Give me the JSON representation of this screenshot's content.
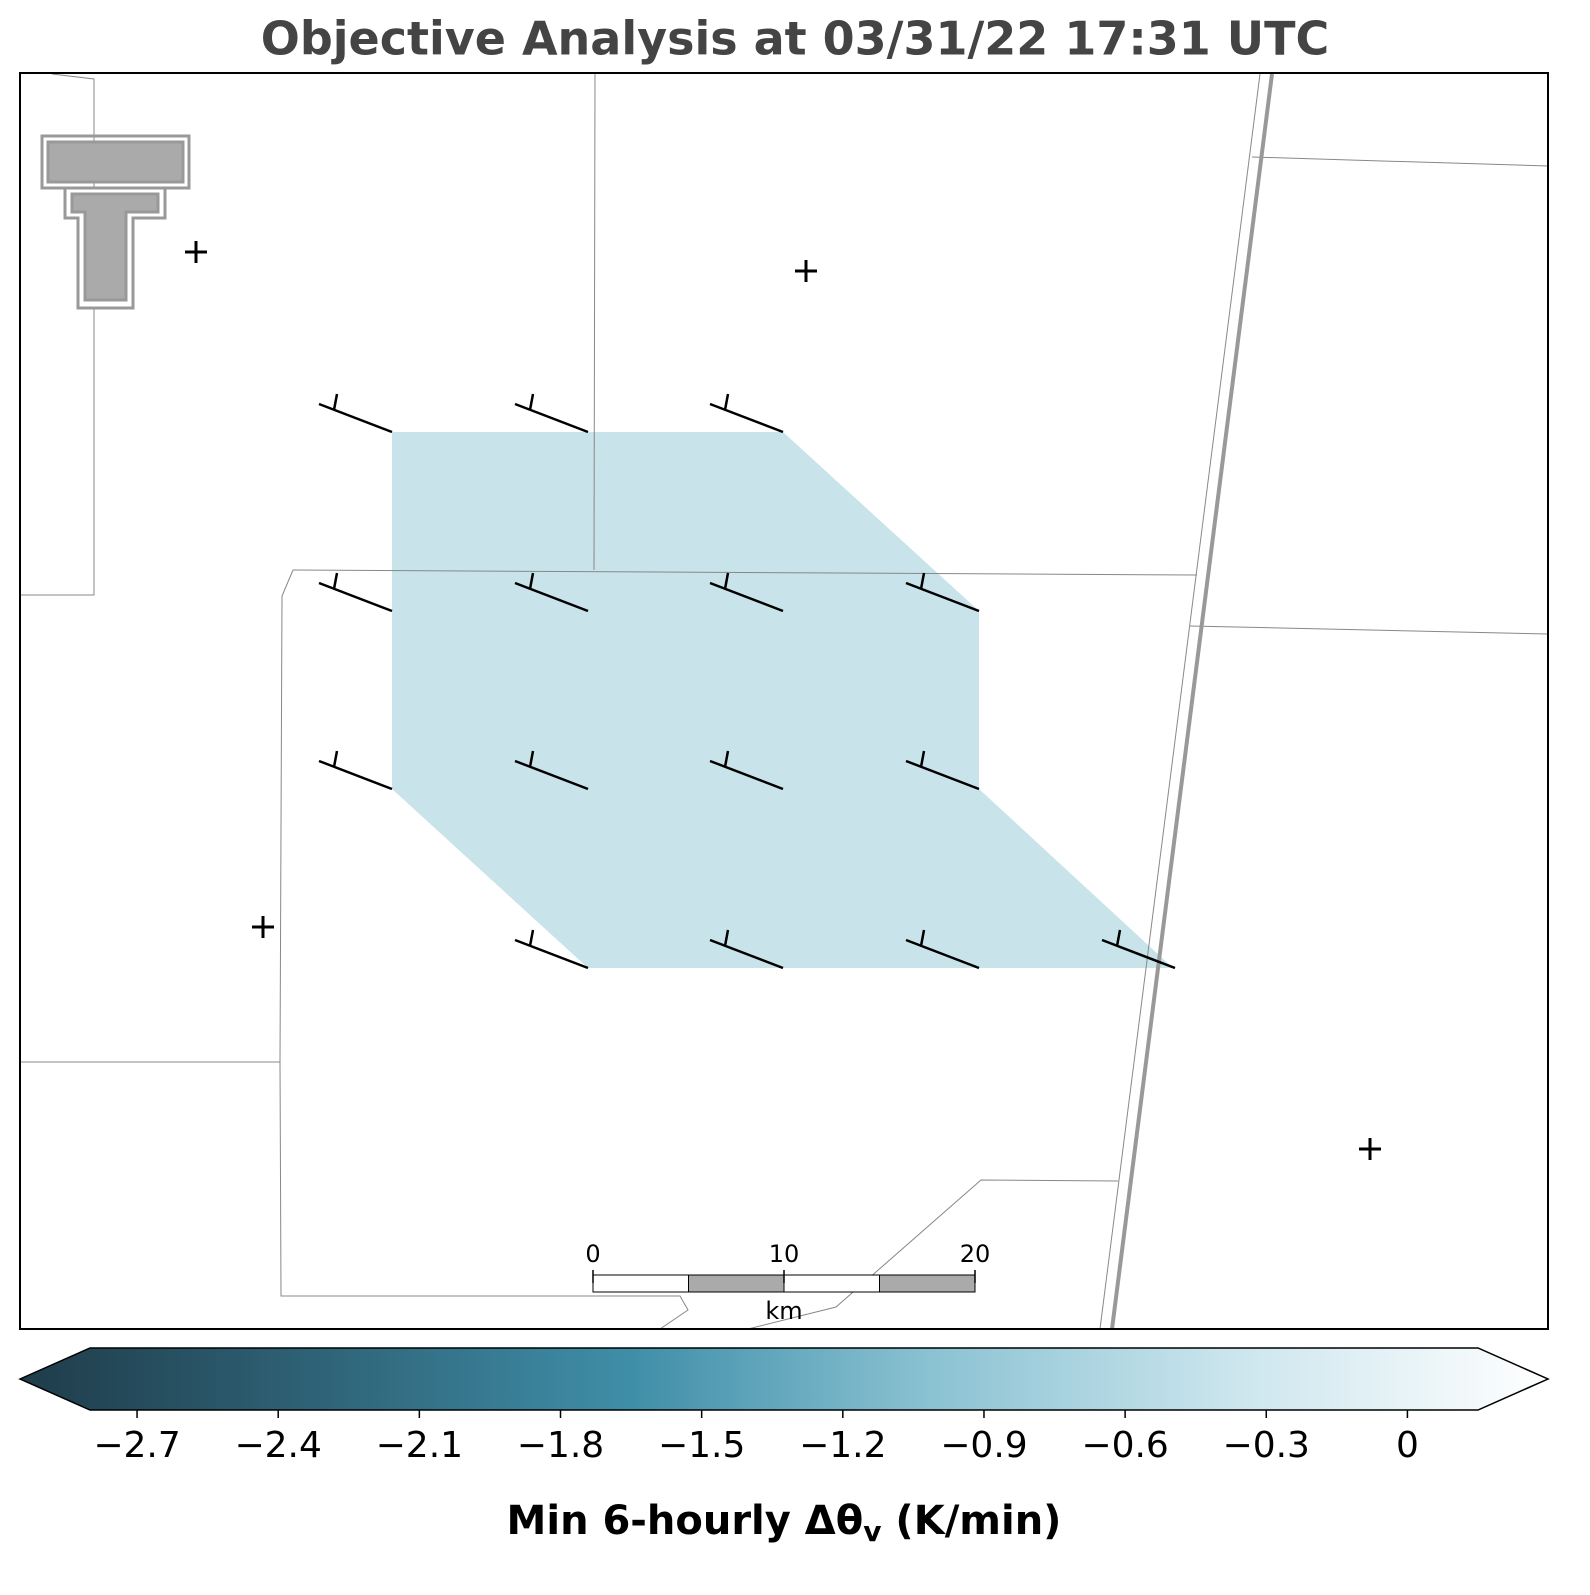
{
  "chart_data": {
    "type": "objective-analysis",
    "title": "Objective Analysis at 03/31/22 17:31 UTC",
    "colorbar": {
      "label": {
        "main": "Min 6-hourly Δθ",
        "sub": "v",
        "tail": " (K/min)"
      },
      "clim": [
        -2.8,
        0.15
      ],
      "colors": [
        "#1f3c4a",
        "#2f6478",
        "#3f8ea8",
        "#8cc3d3",
        "#cde6ee",
        "#ffffff"
      ],
      "ticks": [
        {
          "value": -2.7,
          "label": "−2.7"
        },
        {
          "value": -2.4,
          "label": "−2.4"
        },
        {
          "value": -2.1,
          "label": "−2.1"
        },
        {
          "value": -1.8,
          "label": "−1.8"
        },
        {
          "value": -1.5,
          "label": "−1.5"
        },
        {
          "value": -1.2,
          "label": "−1.2"
        },
        {
          "value": -0.9,
          "label": "−0.9"
        },
        {
          "value": -0.6,
          "label": "−0.6"
        },
        {
          "value": -0.3,
          "label": "−0.3"
        },
        0.0
      ]
    },
    "scale_bar": {
      "ticks": [
        0,
        10,
        20
      ],
      "unit": "km"
    }
  }
}
